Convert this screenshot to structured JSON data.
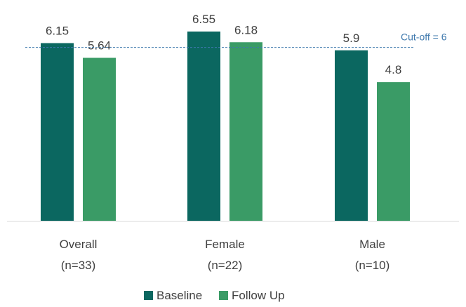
{
  "chart_data": {
    "type": "bar",
    "categories": [
      {
        "name": "Overall",
        "sub": "(n=33)"
      },
      {
        "name": "Female",
        "sub": "(n=22)"
      },
      {
        "name": "Male",
        "sub": "(n=10)"
      }
    ],
    "series": [
      {
        "name": "Baseline",
        "color": "#0b6760",
        "values": [
          6.15,
          6.55,
          5.9
        ]
      },
      {
        "name": "Follow Up",
        "color": "#3a9b66",
        "values": [
          5.64,
          6.18,
          4.8
        ]
      }
    ],
    "value_labels": [
      [
        "6.15",
        "5.64"
      ],
      [
        "6.55",
        "6.18"
      ],
      [
        "5.9",
        "4.8"
      ]
    ],
    "reference_line": {
      "value": 6,
      "label": "Cut-off = 6",
      "color": "#3f79ad",
      "style": "dashed"
    },
    "ylim": [
      0,
      6.55
    ],
    "legend_position": "bottom",
    "grid": false
  }
}
